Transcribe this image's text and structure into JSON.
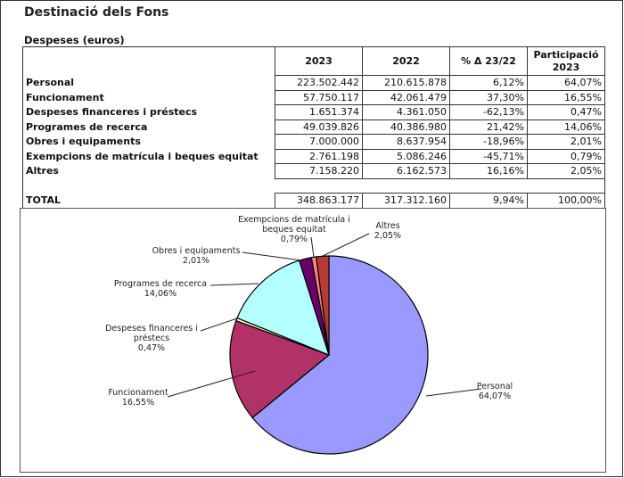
{
  "title": "Destinació dels Fons",
  "subtitle": "Despeses (euros)",
  "table": {
    "headers": [
      "",
      "2023",
      "2022",
      "% Δ 23/22",
      "Participació 2023"
    ],
    "rows": [
      {
        "label": "Personal",
        "v2023": "223.502.442",
        "v2022": "210.615.878",
        "delta": "6,12%",
        "share": "64,07%"
      },
      {
        "label": "Funcionament",
        "v2023": "57.750.117",
        "v2022": "42.061.479",
        "delta": "37,30%",
        "share": "16,55%"
      },
      {
        "label": "Despeses financeres i préstecs",
        "v2023": "1.651.374",
        "v2022": "4.361.050",
        "delta": "-62,13%",
        "share": "0,47%"
      },
      {
        "label": "Programes de recerca",
        "v2023": "49.039.826",
        "v2022": "40.386.980",
        "delta": "21,42%",
        "share": "14,06%"
      },
      {
        "label": "Obres i equipaments",
        "v2023": "7.000.000",
        "v2022": "8.637.954",
        "delta": "-18,96%",
        "share": "2,01%"
      },
      {
        "label": "Exempcions de matrícula i beques equitat",
        "v2023": "2.761.198",
        "v2022": "5.086.246",
        "delta": "-45,71%",
        "share": "0,79%"
      },
      {
        "label": "Altres",
        "v2023": "7.158.220",
        "v2022": "6.162.573",
        "delta": "16,16%",
        "share": "2,05%"
      }
    ],
    "total": {
      "label": "TOTAL",
      "v2023": "348.863.177",
      "v2022": "317.312.160",
      "delta": "9,94%",
      "share": "100,00%"
    }
  },
  "chart_data": {
    "type": "pie",
    "title": "",
    "start": "12 o'clock, clockwise",
    "slices": [
      {
        "label": "Personal",
        "value": 64.07,
        "text": "64,07%",
        "color": "#9999ff"
      },
      {
        "label": "Funcionament",
        "value": 16.55,
        "text": "16,55%",
        "color": "#b03266"
      },
      {
        "label": "Despeses financeres i préstecs",
        "value": 0.47,
        "text": "0,47%",
        "color": "#ffffcc"
      },
      {
        "label": "Programes de recerca",
        "value": 14.06,
        "text": "14,06%",
        "color": "#b3ffff"
      },
      {
        "label": "Obres i equipaments",
        "value": 2.01,
        "text": "2,01%",
        "color": "#660066"
      },
      {
        "label": "Exempcions de matrícula i beques equitat",
        "value": 0.79,
        "text": "0,79%",
        "color": "#ff8080"
      },
      {
        "label": "Altres",
        "value": 2.05,
        "text": "2,05%",
        "color": "#b83a32"
      }
    ]
  }
}
